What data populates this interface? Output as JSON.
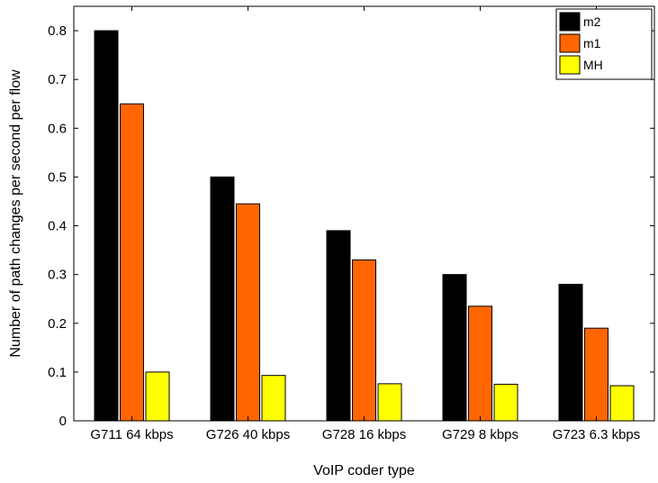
{
  "chart_data": {
    "type": "bar",
    "title": "",
    "xlabel": "VoIP coder type",
    "ylabel": "Number of path changes per second per flow",
    "categories": [
      "G711 64 kbps",
      "G726 40 kbps",
      "G728 16 kbps",
      "G729 8 kbps",
      "G723 6.3 kbps"
    ],
    "series": [
      {
        "name": "m2",
        "color": "#000000",
        "values": [
          0.8,
          0.5,
          0.39,
          0.3,
          0.28
        ]
      },
      {
        "name": "m1",
        "color": "#ff6600",
        "values": [
          0.65,
          0.445,
          0.33,
          0.235,
          0.19
        ]
      },
      {
        "name": "MH",
        "color": "#ffff00",
        "values": [
          0.1,
          0.093,
          0.076,
          0.075,
          0.072
        ]
      }
    ],
    "ylim": [
      0,
      0.85
    ],
    "yticks": [
      0,
      0.1,
      0.2,
      0.3,
      0.4,
      0.5,
      0.6,
      0.7,
      0.8
    ],
    "ytick_labels": [
      "0",
      "0.1",
      "0.2",
      "0.3",
      "0.4",
      "0.5",
      "0.6",
      "0.7",
      "0.8"
    ],
    "grid": false,
    "legend": "top-right"
  }
}
